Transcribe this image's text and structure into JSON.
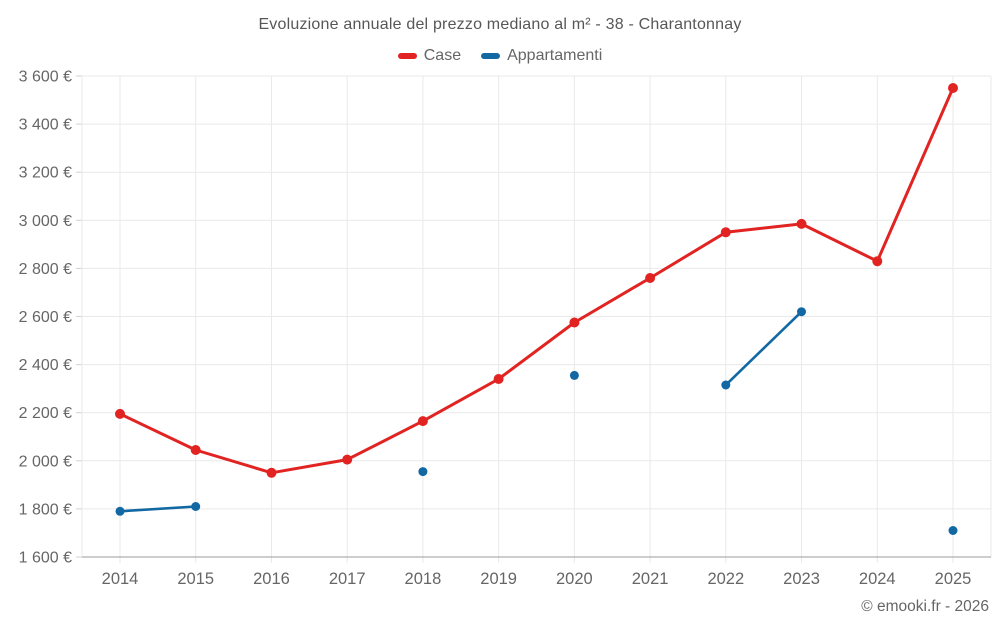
{
  "chart_data": {
    "type": "line",
    "title": "Evoluzione annuale del prezzo mediano al m² - 38 - Charantonnay",
    "copyright": "© emooki.fr - 2026",
    "categories": [
      "2014",
      "2015",
      "2016",
      "2017",
      "2018",
      "2019",
      "2020",
      "2021",
      "2022",
      "2023",
      "2024",
      "2025"
    ],
    "series": [
      {
        "name": "Case",
        "color": "#e12422",
        "values": [
          2195,
          2045,
          1950,
          2005,
          2165,
          2340,
          2575,
          2760,
          2950,
          2985,
          2830,
          3550
        ]
      },
      {
        "name": "Appartamenti",
        "color": "#1268a3",
        "values": [
          1790,
          1810,
          null,
          null,
          1955,
          null,
          2355,
          null,
          2315,
          2620,
          null,
          1710
        ]
      }
    ],
    "xlabel": "",
    "ylabel": "",
    "ylim": [
      1600,
      3600
    ],
    "ytick_step": 200,
    "y_tick_labels": [
      "1 600 €",
      "1 800 €",
      "2 000 €",
      "2 200 €",
      "2 400 €",
      "2 600 €",
      "2 800 €",
      "3 000 €",
      "3 200 €",
      "3 400 €",
      "3 600 €"
    ],
    "grid": true,
    "legend_position": "top"
  },
  "colors": {
    "grid": "#e9e9e9",
    "axis": "#9b9b9b",
    "tick": "#d2d2d2",
    "label": "#666666",
    "title": "#575757",
    "background": "#ffffff"
  }
}
